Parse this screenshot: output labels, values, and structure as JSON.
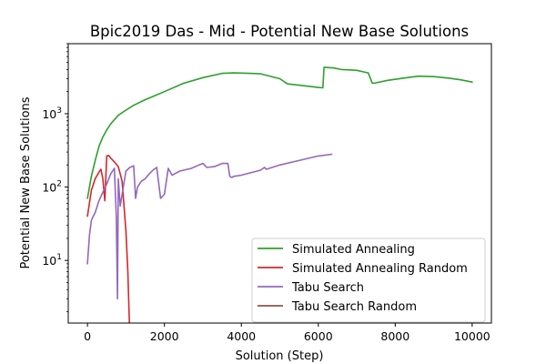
{
  "chart_data": {
    "type": "line",
    "title": "Bpic2019 Das - Mid - Potential New Base Solutions",
    "xlabel": "Solution (Step)",
    "ylabel": "Potential New Base Solutions",
    "yscale": "log",
    "xlim": [
      -500,
      10500
    ],
    "ylim": [
      1.4,
      9000
    ],
    "xticks": [
      0,
      2000,
      4000,
      6000,
      8000,
      10000
    ],
    "xtick_labels": [
      "0",
      "2000",
      "4000",
      "6000",
      "8000",
      "10000"
    ],
    "yticks": [
      10,
      100,
      1000
    ],
    "ytick_labels": [
      "10^1",
      "10^2",
      "10^3"
    ],
    "grid": false,
    "legend_position": "lower-right",
    "series": [
      {
        "name": "Simulated Annealing",
        "color": "#2ca02c",
        "x": [
          0,
          100,
          200,
          300,
          400,
          500,
          600,
          700,
          800,
          1000,
          1200,
          1500,
          1800,
          2000,
          2500,
          3000,
          3500,
          3800,
          4200,
          4500,
          5000,
          5200,
          5500,
          6000,
          6120,
          6150,
          6400,
          6600,
          6800,
          7000,
          7300,
          7400,
          7450,
          7800,
          8200,
          8600,
          9000,
          9400,
          9700,
          10000
        ],
        "y": [
          70,
          140,
          230,
          360,
          480,
          600,
          720,
          830,
          950,
          1120,
          1300,
          1550,
          1800,
          2000,
          2600,
          3100,
          3550,
          3600,
          3550,
          3500,
          3000,
          2550,
          2450,
          2280,
          2250,
          4300,
          4200,
          4000,
          3950,
          3900,
          3600,
          2620,
          2600,
          2850,
          3050,
          3250,
          3200,
          3050,
          2900,
          2700
        ]
      },
      {
        "name": "Simulated Annealing Random",
        "color": "#d62728",
        "x": [
          0,
          100,
          200,
          300,
          350,
          400,
          450,
          500,
          550,
          600,
          700,
          800,
          900,
          1000,
          1050,
          1080,
          1100
        ],
        "y": [
          40,
          90,
          130,
          160,
          175,
          130,
          65,
          265,
          270,
          250,
          220,
          190,
          120,
          25,
          7,
          2,
          1
        ]
      },
      {
        "name": "Tabu Search",
        "color": "#9467bd",
        "x": [
          0,
          50,
          100,
          150,
          200,
          300,
          400,
          500,
          600,
          700,
          750,
          780,
          800,
          850,
          900,
          1000,
          1100,
          1200,
          1250,
          1300,
          1400,
          1500,
          1600,
          1700,
          1800,
          1900,
          2000,
          2100,
          2200,
          2300,
          2400,
          2500,
          2700,
          2900,
          3000,
          3100,
          3300,
          3500,
          3650,
          3700,
          3750,
          3800,
          4000,
          4500,
          4600,
          4650,
          5000,
          5500,
          6000,
          6350
        ],
        "y": [
          9,
          22,
          35,
          40,
          45,
          65,
          85,
          110,
          150,
          180,
          40,
          3,
          130,
          55,
          80,
          165,
          185,
          195,
          70,
          100,
          120,
          130,
          150,
          170,
          185,
          70,
          80,
          180,
          145,
          155,
          165,
          170,
          180,
          200,
          210,
          185,
          190,
          210,
          210,
          140,
          135,
          140,
          145,
          170,
          185,
          175,
          200,
          230,
          265,
          280
        ]
      },
      {
        "name": "Tabu Search Random",
        "color": "#8c564b",
        "x": [],
        "y": []
      }
    ]
  }
}
